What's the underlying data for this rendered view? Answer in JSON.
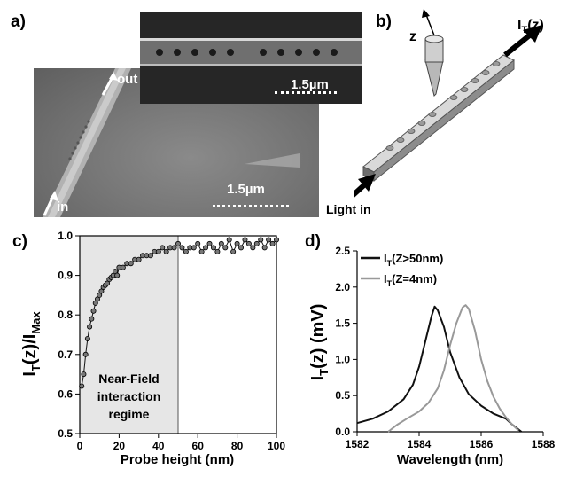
{
  "panel_a": {
    "label": "a)",
    "scale_top": "1.5µm",
    "scale_bottom": "1.5µm",
    "arrow_out": "out",
    "arrow_in": "in"
  },
  "panel_b": {
    "label": "b)",
    "z_label": "z",
    "it_label": "I",
    "it_sub": "T",
    "it_suffix": "(z)",
    "light_label": "Light in"
  },
  "colors": {
    "black": "#111111",
    "gray": "#999999",
    "regime_fill": "#e6e6e6"
  },
  "chart_data": [
    {
      "type": "scatter",
      "panel_label": "c)",
      "xlabel": "Probe height (nm)",
      "ylabel_main": "I",
      "ylabel_sub1": "T",
      "ylabel_mid": "(z)/I",
      "ylabel_sub2": "Max",
      "xlim": [
        0,
        100
      ],
      "ylim": [
        0.5,
        1.0
      ],
      "xticks": [
        0,
        20,
        40,
        60,
        80,
        100
      ],
      "yticks": [
        0.5,
        0.6,
        0.7,
        0.8,
        0.9,
        1.0
      ],
      "ytick_labels": [
        "0.5",
        "0.6",
        "0.7",
        "0.8",
        "0.9",
        "1.0"
      ],
      "regime": {
        "x_range": [
          0,
          50
        ],
        "lines": [
          "Near-Field",
          "interaction",
          "regime"
        ]
      },
      "x": [
        1,
        2,
        3,
        4,
        5,
        6,
        7,
        8,
        9,
        10,
        11,
        12,
        13,
        14,
        15,
        16,
        17,
        18,
        19,
        20,
        22,
        24,
        26,
        28,
        30,
        32,
        34,
        36,
        38,
        40,
        42,
        44,
        46,
        48,
        50,
        52,
        54,
        56,
        58,
        60,
        62,
        64,
        66,
        68,
        70,
        72,
        74,
        76,
        78,
        80,
        82,
        84,
        86,
        88,
        90,
        92,
        94,
        96,
        98,
        100
      ],
      "y": [
        0.62,
        0.65,
        0.7,
        0.74,
        0.77,
        0.79,
        0.81,
        0.83,
        0.84,
        0.85,
        0.86,
        0.87,
        0.875,
        0.88,
        0.89,
        0.895,
        0.9,
        0.91,
        0.9,
        0.92,
        0.92,
        0.93,
        0.93,
        0.94,
        0.94,
        0.95,
        0.95,
        0.95,
        0.96,
        0.96,
        0.97,
        0.96,
        0.97,
        0.97,
        0.98,
        0.97,
        0.96,
        0.97,
        0.97,
        0.98,
        0.96,
        0.97,
        0.98,
        0.97,
        0.96,
        0.98,
        0.97,
        0.99,
        0.96,
        0.98,
        0.97,
        0.99,
        0.98,
        0.97,
        0.98,
        0.99,
        0.97,
        0.99,
        0.98,
        0.99
      ]
    },
    {
      "type": "line",
      "panel_label": "d)",
      "xlabel": "Wavelength (nm)",
      "ylabel_main": "I",
      "ylabel_sub": "T",
      "ylabel_suffix": "(z) (mV)",
      "xlim": [
        1582,
        1588
      ],
      "ylim": [
        0,
        2.5
      ],
      "xticks": [
        1582,
        1584,
        1586,
        1588
      ],
      "yticks": [
        0.0,
        0.5,
        1.0,
        1.5,
        2.0,
        2.5
      ],
      "ytick_labels": [
        "0.0",
        "0.5",
        "1.0",
        "1.5",
        "2.0",
        "2.5"
      ],
      "series": [
        {
          "name_main": "I",
          "name_sub": "T",
          "name_suffix": "(Z>50nm)",
          "color": "#111111",
          "x": [
            1582.0,
            1582.5,
            1583.0,
            1583.5,
            1583.8,
            1584.0,
            1584.2,
            1584.4,
            1584.5,
            1584.6,
            1584.8,
            1585.0,
            1585.3,
            1585.6,
            1586.0,
            1586.4,
            1586.8,
            1587.0,
            1587.3
          ],
          "y": [
            0.12,
            0.18,
            0.28,
            0.45,
            0.65,
            0.9,
            1.25,
            1.6,
            1.73,
            1.68,
            1.45,
            1.1,
            0.75,
            0.52,
            0.36,
            0.25,
            0.18,
            0.1,
            0.0
          ]
        },
        {
          "name_main": "I",
          "name_sub": "T",
          "name_suffix": "(Z=4nm)",
          "color": "#999999",
          "x": [
            1583.0,
            1583.3,
            1583.6,
            1584.0,
            1584.3,
            1584.6,
            1584.8,
            1585.0,
            1585.2,
            1585.4,
            1585.5,
            1585.6,
            1585.8,
            1586.0,
            1586.2,
            1586.4,
            1586.6,
            1586.8,
            1587.0,
            1587.2
          ],
          "y": [
            0.0,
            0.1,
            0.18,
            0.28,
            0.4,
            0.6,
            0.85,
            1.2,
            1.5,
            1.72,
            1.75,
            1.7,
            1.4,
            1.0,
            0.7,
            0.48,
            0.32,
            0.2,
            0.1,
            0.02
          ]
        }
      ]
    }
  ]
}
